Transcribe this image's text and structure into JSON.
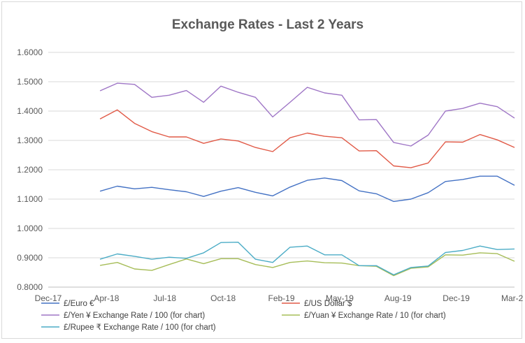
{
  "chart_data": {
    "type": "line",
    "title": "Exchange Rates - Last 2 Years",
    "xlabel": "",
    "ylabel": "",
    "ylim": [
      0.8,
      1.6
    ],
    "y_ticks": [
      "0.8000",
      "0.9000",
      "1.0000",
      "1.1000",
      "1.2000",
      "1.3000",
      "1.4000",
      "1.5000",
      "1.6000"
    ],
    "x_ticks": [
      "Dec-17",
      "Apr-18",
      "Jul-18",
      "Oct-18",
      "Feb-19",
      "May-19",
      "Aug-19",
      "Dec-19",
      "Mar-20"
    ],
    "grid": true,
    "legend_position": "bottom",
    "x": [
      "Mar-18",
      "Apr-18",
      "May-18",
      "Jun-18",
      "Jul-18",
      "Aug-18",
      "Sep-18",
      "Oct-18",
      "Nov-18",
      "Dec-18",
      "Jan-19",
      "Feb-19",
      "Mar-19",
      "Apr-19",
      "May-19",
      "Jun-19",
      "Jul-19",
      "Aug-19",
      "Sep-19",
      "Oct-19",
      "Nov-19",
      "Dec-19",
      "Jan-20",
      "Feb-20",
      "Mar-20"
    ],
    "series": [
      {
        "name": "£/Euro €",
        "color": "#4472c4",
        "values": [
          1.127,
          1.144,
          1.135,
          1.14,
          1.132,
          1.125,
          1.109,
          1.127,
          1.139,
          1.123,
          1.111,
          1.141,
          1.164,
          1.172,
          1.163,
          1.128,
          1.118,
          1.092,
          1.1,
          1.122,
          1.16,
          1.167,
          1.178,
          1.178,
          1.147
        ]
      },
      {
        "name": "£/US Dollar $",
        "color": "#e15a47",
        "values": [
          1.373,
          1.404,
          1.358,
          1.33,
          1.312,
          1.312,
          1.29,
          1.305,
          1.298,
          1.276,
          1.262,
          1.309,
          1.325,
          1.314,
          1.309,
          1.264,
          1.265,
          1.213,
          1.207,
          1.223,
          1.295,
          1.294,
          1.32,
          1.302,
          1.276
        ]
      },
      {
        "name": "£/Yen ¥ Exchange Rate / 100 (for chart)",
        "color": "#9f76c6",
        "values": [
          1.469,
          1.495,
          1.491,
          1.447,
          1.454,
          1.47,
          1.43,
          1.485,
          1.464,
          1.447,
          1.38,
          1.43,
          1.481,
          1.462,
          1.454,
          1.37,
          1.371,
          1.293,
          1.281,
          1.318,
          1.4,
          1.409,
          1.427,
          1.415,
          1.376
        ]
      },
      {
        "name": "£/Yuan ¥ Exchange Rate / 10 (for chart)",
        "color": "#a6bd58",
        "values": [
          0.874,
          0.884,
          0.862,
          0.857,
          0.877,
          0.896,
          0.88,
          0.897,
          0.897,
          0.877,
          0.867,
          0.884,
          0.889,
          0.883,
          0.882,
          0.873,
          0.871,
          0.839,
          0.864,
          0.869,
          0.91,
          0.909,
          0.917,
          0.914,
          0.888
        ]
      },
      {
        "name": "£/Rupee ₹ Exchange Rate / 100 (for chart)",
        "color": "#4bacc6",
        "values": [
          0.895,
          0.913,
          0.905,
          0.895,
          0.902,
          0.898,
          0.917,
          0.952,
          0.953,
          0.895,
          0.884,
          0.936,
          0.94,
          0.91,
          0.91,
          0.873,
          0.873,
          0.842,
          0.867,
          0.872,
          0.918,
          0.925,
          0.94,
          0.928,
          0.93
        ]
      }
    ]
  }
}
